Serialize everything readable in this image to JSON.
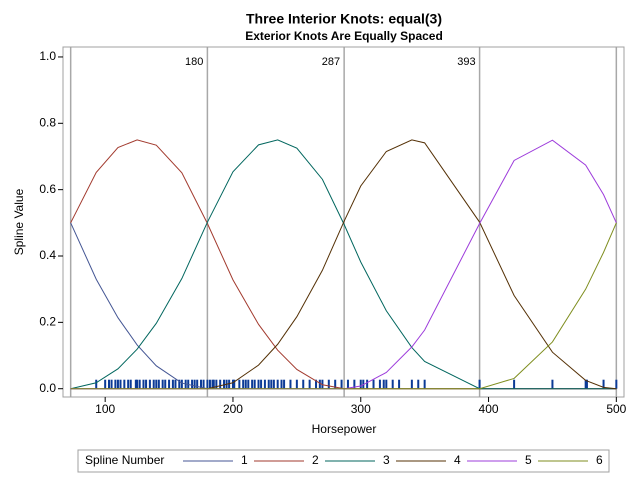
{
  "chart_data": {
    "type": "line",
    "title": "Three Interior Knots: equal(3)",
    "subtitle": "Exterior Knots Are Equally Spaced",
    "x_label": "Horsepower",
    "y_label": "Spline Value",
    "legend_title": "Spline Number",
    "x": [
      73,
      93,
      110,
      125,
      140,
      160,
      180,
      200,
      220,
      235,
      250,
      270,
      287,
      300,
      320,
      340,
      350,
      393,
      420,
      450,
      476,
      490,
      500
    ],
    "series": [
      {
        "name": "1",
        "color": "#445694",
        "values": [
          0.5,
          0.33,
          0.214,
          0.132,
          0.069,
          0.017,
          0,
          0,
          0,
          0,
          0,
          0,
          0,
          0,
          0,
          0,
          0,
          0,
          0,
          0,
          0,
          0,
          0
        ]
      },
      {
        "name": "2",
        "color": "#a23a2e",
        "values": [
          0.5,
          0.652,
          0.727,
          0.75,
          0.734,
          0.651,
          0.498,
          0.328,
          0.194,
          0.116,
          0.058,
          0.012,
          0,
          0,
          0,
          0,
          0,
          0,
          0,
          0,
          0,
          0,
          0
        ]
      },
      {
        "name": "3",
        "color": "#01665e",
        "values": [
          0,
          0.018,
          0.06,
          0.119,
          0.197,
          0.332,
          0.502,
          0.654,
          0.735,
          0.75,
          0.725,
          0.631,
          0.495,
          0.382,
          0.235,
          0.124,
          0.082,
          0,
          0,
          0,
          0,
          0,
          0
        ]
      },
      {
        "name": "4",
        "color": "#543005",
        "values": [
          0,
          0,
          0,
          0,
          0,
          0,
          0,
          0.018,
          0.071,
          0.134,
          0.217,
          0.357,
          0.505,
          0.611,
          0.715,
          0.75,
          0.741,
          0.502,
          0.281,
          0.11,
          0.025,
          0.004,
          0
        ]
      },
      {
        "name": "5",
        "color": "#9d3cdb",
        "values": [
          0,
          0,
          0,
          0,
          0,
          0,
          0,
          0,
          0,
          0,
          0,
          0,
          0,
          0.008,
          0.049,
          0.126,
          0.177,
          0.498,
          0.688,
          0.749,
          0.674,
          0.585,
          0.5
        ]
      },
      {
        "name": "6",
        "color": "#7f8e1f",
        "values": [
          0,
          0,
          0,
          0,
          0,
          0,
          0,
          0,
          0,
          0,
          0,
          0,
          0,
          0,
          0,
          0,
          0,
          0,
          0.031,
          0.141,
          0.3,
          0.411,
          0.5
        ]
      }
    ],
    "xlim": [
      67,
      506
    ],
    "ylim": [
      -0.025,
      1.03
    ],
    "xticks": [
      100,
      200,
      300,
      400,
      500
    ],
    "yticks": [
      {
        "value": 0,
        "label": "0.0"
      },
      0.2,
      0.4,
      0.6,
      0.8,
      {
        "value": 1,
        "label": "1.0"
      }
    ],
    "knots": [
      180,
      287,
      393
    ],
    "exterior_knots": [
      73,
      500
    ],
    "knot_color": "#a8a8a8",
    "rug": {
      "color": "#0b3a96",
      "values": [
        93,
        100,
        103,
        105,
        108,
        110,
        112,
        115,
        118,
        120,
        124,
        125,
        127,
        130,
        132,
        135,
        138,
        140,
        142,
        145,
        147,
        150,
        153,
        155,
        158,
        160,
        163,
        165,
        168,
        170,
        172,
        175,
        177,
        180,
        182,
        184,
        185,
        187,
        190,
        193,
        195,
        197,
        200,
        201,
        205,
        208,
        210,
        212,
        215,
        217,
        220,
        222,
        225,
        228,
        230,
        232,
        235,
        238,
        240,
        245,
        250,
        255,
        260,
        265,
        268,
        270,
        275,
        280,
        285,
        290,
        295,
        300,
        302,
        305,
        310,
        315,
        318,
        320,
        325,
        330,
        340,
        345,
        350,
        393,
        420,
        450,
        476,
        477,
        490,
        500
      ]
    }
  }
}
